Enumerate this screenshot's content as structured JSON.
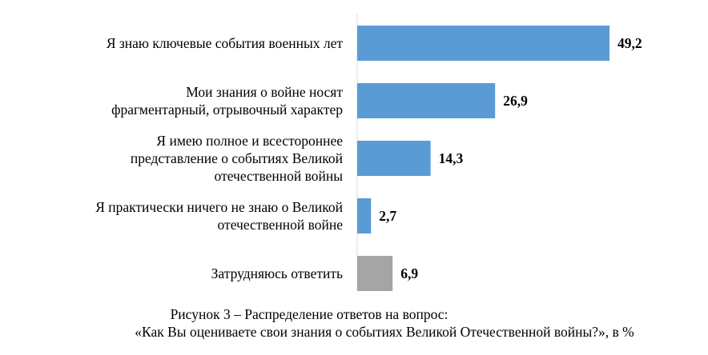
{
  "chart_data": {
    "type": "bar",
    "orientation": "horizontal",
    "categories": [
      [
        "Я знаю ключевые события военных лет"
      ],
      [
        "Мои знания о войне носят",
        "фрагментарный, отрывочный характер"
      ],
      [
        "Я имею полное и всестороннее",
        "представление о событиях Великой",
        "отечественной войны"
      ],
      [
        "Я практически ничего не знаю о Великой",
        "отечественной войне"
      ],
      [
        "Затрудняюсь ответить"
      ]
    ],
    "values": [
      49.2,
      26.9,
      14.3,
      2.7,
      6.9
    ],
    "value_labels": [
      "49,2",
      "26,9",
      "14,3",
      "2,7",
      "6,9"
    ],
    "bar_colors": [
      "#5b9bd5",
      "#5b9bd5",
      "#5b9bd5",
      "#5b9bd5",
      "#a5a5a5"
    ],
    "xlim": [
      0,
      49.2
    ],
    "grid": false,
    "legend": "none"
  },
  "caption": {
    "line1": "Рисунок 3 – Распределение ответов на вопрос:",
    "line2": "«Как Вы оцениваете свои знания о событиях Великой Отечественной войны?», в %"
  },
  "colors": {
    "bar_main": "#5b9bd5",
    "bar_other": "#a5a5a5",
    "axis": "#d9d9d9"
  }
}
